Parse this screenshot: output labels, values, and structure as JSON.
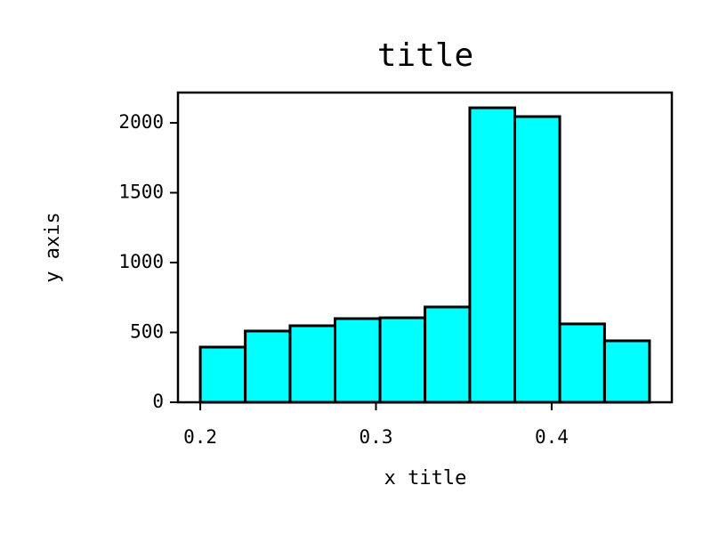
{
  "chart_data": {
    "type": "histogram",
    "title": "title",
    "x_label": "x title",
    "y_label": "y axis",
    "bins": [
      0.2,
      0.2256,
      0.2511,
      0.2767,
      0.3023,
      0.3279,
      0.3534,
      0.379,
      0.4046,
      0.4301,
      0.4557
    ],
    "values": [
      395,
      510,
      548,
      599,
      605,
      682,
      2108,
      2045,
      561,
      440
    ],
    "color": "#00ffff",
    "edgecolor": "#000000",
    "xlim": [
      0.1873,
      0.4684
    ],
    "xticks": [
      0.2,
      0.3,
      0.4
    ],
    "ylim": [
      0,
      2217
    ],
    "yticks": [
      0,
      500,
      1000,
      1500,
      2000
    ],
    "grid": false
  }
}
